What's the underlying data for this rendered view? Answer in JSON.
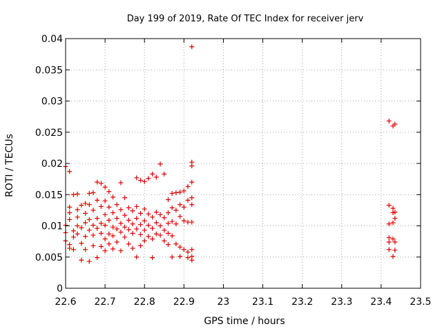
{
  "chart_data": {
    "type": "scatter",
    "title": "Day 199 of 2019, Rate Of TEC Index for receiver jerv",
    "xlabel": "GPS time / hours",
    "ylabel": "ROTI / TECUs",
    "xlim": [
      22.6,
      23.5
    ],
    "ylim": [
      0,
      0.04
    ],
    "x_ticks": [
      "22.6",
      "22.7",
      "22.8",
      "22.9",
      "23",
      "23.1",
      "23.2",
      "23.3",
      "23.4",
      "23.5"
    ],
    "y_ticks": [
      "0",
      "0.005",
      "0.01",
      "0.015",
      "0.02",
      "0.025",
      "0.03",
      "0.035",
      "0.04"
    ],
    "grid": true,
    "marker": "+",
    "color": "#dd0000",
    "series": [
      {
        "points": [
          [
            22.6,
            0.0195
          ],
          [
            22.61,
            0.0187
          ],
          [
            22.6,
            0.0101
          ],
          [
            22.6,
            0.0089
          ],
          [
            22.6,
            0.0076
          ],
          [
            22.61,
            0.007
          ],
          [
            22.61,
            0.0064
          ],
          [
            22.61,
            0.013
          ],
          [
            22.61,
            0.0121
          ],
          [
            22.61,
            0.011
          ],
          [
            22.62,
            0.015
          ],
          [
            22.62,
            0.0092
          ],
          [
            22.62,
            0.0082
          ],
          [
            22.62,
            0.0062
          ],
          [
            22.63,
            0.0151
          ],
          [
            22.63,
            0.0126
          ],
          [
            22.63,
            0.0114
          ],
          [
            22.63,
            0.01
          ],
          [
            22.63,
            0.0087
          ],
          [
            22.64,
            0.0133
          ],
          [
            22.64,
            0.0097
          ],
          [
            22.64,
            0.0072
          ],
          [
            22.64,
            0.0045
          ],
          [
            22.65,
            0.0136
          ],
          [
            22.65,
            0.012
          ],
          [
            22.65,
            0.0105
          ],
          [
            22.65,
            0.0083
          ],
          [
            22.65,
            0.0062
          ],
          [
            22.66,
            0.0152
          ],
          [
            22.66,
            0.0134
          ],
          [
            22.66,
            0.011
          ],
          [
            22.66,
            0.0093
          ],
          [
            22.66,
            0.0043
          ],
          [
            22.67,
            0.0153
          ],
          [
            22.67,
            0.0125
          ],
          [
            22.67,
            0.0101
          ],
          [
            22.67,
            0.0085
          ],
          [
            22.67,
            0.0068
          ],
          [
            22.68,
            0.017
          ],
          [
            22.68,
            0.0141
          ],
          [
            22.68,
            0.0112
          ],
          [
            22.68,
            0.0096
          ],
          [
            22.68,
            0.0049
          ],
          [
            22.69,
            0.0168
          ],
          [
            22.69,
            0.0131
          ],
          [
            22.69,
            0.0104
          ],
          [
            22.69,
            0.0088
          ],
          [
            22.69,
            0.0067
          ],
          [
            22.7,
            0.0162
          ],
          [
            22.7,
            0.014
          ],
          [
            22.7,
            0.0118
          ],
          [
            22.7,
            0.0101
          ],
          [
            22.7,
            0.0079
          ],
          [
            22.7,
            0.006
          ],
          [
            22.71,
            0.0155
          ],
          [
            22.71,
            0.013
          ],
          [
            22.71,
            0.0109
          ],
          [
            22.71,
            0.0087
          ],
          [
            22.71,
            0.0071
          ],
          [
            22.72,
            0.0146
          ],
          [
            22.72,
            0.0121
          ],
          [
            22.72,
            0.0098
          ],
          [
            22.72,
            0.0084
          ],
          [
            22.72,
            0.0063
          ],
          [
            22.73,
            0.0134
          ],
          [
            22.73,
            0.0112
          ],
          [
            22.73,
            0.0095
          ],
          [
            22.73,
            0.0074
          ],
          [
            22.74,
            0.0169
          ],
          [
            22.74,
            0.0126
          ],
          [
            22.74,
            0.0104
          ],
          [
            22.74,
            0.009
          ],
          [
            22.74,
            0.006
          ],
          [
            22.75,
            0.0145
          ],
          [
            22.75,
            0.0117
          ],
          [
            22.75,
            0.0098
          ],
          [
            22.75,
            0.0082
          ],
          [
            22.76,
            0.0129
          ],
          [
            22.76,
            0.0109
          ],
          [
            22.76,
            0.0094
          ],
          [
            22.76,
            0.0071
          ],
          [
            22.77,
            0.0124
          ],
          [
            22.77,
            0.0103
          ],
          [
            22.77,
            0.0088
          ],
          [
            22.77,
            0.0064
          ],
          [
            22.78,
            0.0177
          ],
          [
            22.78,
            0.0131
          ],
          [
            22.78,
            0.0112
          ],
          [
            22.78,
            0.0095
          ],
          [
            22.78,
            0.005
          ],
          [
            22.79,
            0.0173
          ],
          [
            22.79,
            0.012
          ],
          [
            22.79,
            0.0102
          ],
          [
            22.79,
            0.0086
          ],
          [
            22.79,
            0.0068
          ],
          [
            22.8,
            0.0171
          ],
          [
            22.8,
            0.0127
          ],
          [
            22.8,
            0.0108
          ],
          [
            22.8,
            0.0093
          ],
          [
            22.8,
            0.0076
          ],
          [
            22.81,
            0.0176
          ],
          [
            22.81,
            0.0119
          ],
          [
            22.81,
            0.0101
          ],
          [
            22.81,
            0.0083
          ],
          [
            22.82,
            0.0183
          ],
          [
            22.82,
            0.0114
          ],
          [
            22.82,
            0.0096
          ],
          [
            22.82,
            0.0079
          ],
          [
            22.82,
            0.0049
          ],
          [
            22.83,
            0.0178
          ],
          [
            22.83,
            0.0122
          ],
          [
            22.83,
            0.0105
          ],
          [
            22.83,
            0.0087
          ],
          [
            22.84,
            0.0199
          ],
          [
            22.84,
            0.0118
          ],
          [
            22.84,
            0.01
          ],
          [
            22.84,
            0.0085
          ],
          [
            22.85,
            0.0183
          ],
          [
            22.85,
            0.0113
          ],
          [
            22.85,
            0.0093
          ],
          [
            22.85,
            0.0076
          ],
          [
            22.86,
            0.0142
          ],
          [
            22.86,
            0.0121
          ],
          [
            22.86,
            0.0104
          ],
          [
            22.86,
            0.0088
          ],
          [
            22.86,
            0.007
          ],
          [
            22.87,
            0.0152
          ],
          [
            22.87,
            0.0129
          ],
          [
            22.87,
            0.0107
          ],
          [
            22.87,
            0.0084
          ],
          [
            22.87,
            0.005
          ],
          [
            22.88,
            0.0153
          ],
          [
            22.88,
            0.0125
          ],
          [
            22.88,
            0.0103
          ],
          [
            22.88,
            0.0071
          ],
          [
            22.89,
            0.0154
          ],
          [
            22.89,
            0.0134
          ],
          [
            22.89,
            0.0115
          ],
          [
            22.89,
            0.0066
          ],
          [
            22.89,
            0.0051
          ],
          [
            22.9,
            0.0156
          ],
          [
            22.9,
            0.013
          ],
          [
            22.9,
            0.0108
          ],
          [
            22.9,
            0.0062
          ],
          [
            22.91,
            0.0163
          ],
          [
            22.91,
            0.0141
          ],
          [
            22.91,
            0.0106
          ],
          [
            22.91,
            0.0058
          ],
          [
            22.91,
            0.0049
          ],
          [
            22.92,
            0.0387
          ],
          [
            22.92,
            0.0202
          ],
          [
            22.92,
            0.0196
          ],
          [
            22.92,
            0.017
          ],
          [
            22.92,
            0.0145
          ],
          [
            22.92,
            0.0134
          ],
          [
            22.92,
            0.0106
          ],
          [
            22.92,
            0.0062
          ],
          [
            22.92,
            0.0051
          ],
          [
            22.92,
            0.0045
          ],
          [
            23.42,
            0.0268
          ],
          [
            23.43,
            0.026
          ],
          [
            23.435,
            0.0263
          ],
          [
            23.42,
            0.0133
          ],
          [
            23.42,
            0.0103
          ],
          [
            23.42,
            0.0081
          ],
          [
            23.42,
            0.0074
          ],
          [
            23.42,
            0.0062
          ],
          [
            23.43,
            0.0128
          ],
          [
            23.43,
            0.0121
          ],
          [
            23.43,
            0.0105
          ],
          [
            23.43,
            0.0079
          ],
          [
            23.43,
            0.0051
          ],
          [
            23.435,
            0.0122
          ],
          [
            23.435,
            0.0112
          ],
          [
            23.435,
            0.0074
          ],
          [
            23.435,
            0.0061
          ]
        ]
      }
    ]
  }
}
